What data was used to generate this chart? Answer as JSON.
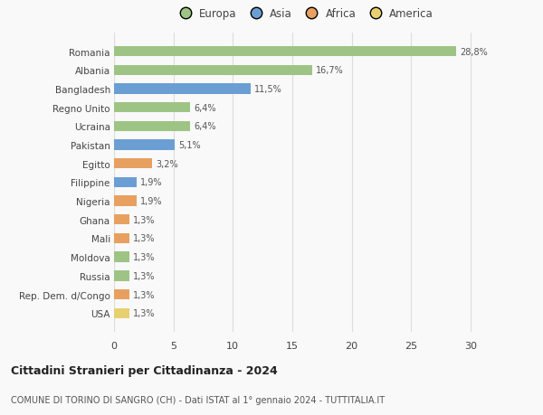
{
  "categories": [
    "USA",
    "Rep. Dem. d/Congo",
    "Russia",
    "Moldova",
    "Mali",
    "Ghana",
    "Nigeria",
    "Filippine",
    "Egitto",
    "Pakistan",
    "Ucraina",
    "Regno Unito",
    "Bangladesh",
    "Albania",
    "Romania"
  ],
  "values": [
    1.3,
    1.3,
    1.3,
    1.3,
    1.3,
    1.3,
    1.9,
    1.9,
    3.2,
    5.1,
    6.4,
    6.4,
    11.5,
    16.7,
    28.8
  ],
  "labels": [
    "1,3%",
    "1,3%",
    "1,3%",
    "1,3%",
    "1,3%",
    "1,3%",
    "1,9%",
    "1,9%",
    "3,2%",
    "5,1%",
    "6,4%",
    "6,4%",
    "11,5%",
    "16,7%",
    "28,8%"
  ],
  "colors": [
    "#e8d070",
    "#e8a060",
    "#9dc484",
    "#9dc484",
    "#e8a060",
    "#e8a060",
    "#e8a060",
    "#6b9fd4",
    "#e8a060",
    "#6b9fd4",
    "#9dc484",
    "#9dc484",
    "#6b9fd4",
    "#9dc484",
    "#9dc484"
  ],
  "continent_colors": {
    "Europa": "#9dc484",
    "Asia": "#6b9fd4",
    "Africa": "#e8a060",
    "America": "#e8d070"
  },
  "title1": "Cittadini Stranieri per Cittadinanza - 2024",
  "title2": "COMUNE DI TORINO DI SANGRO (CH) - Dati ISTAT al 1° gennaio 2024 - TUTTITALIA.IT",
  "xlim": [
    0,
    32
  ],
  "xticks": [
    0,
    5,
    10,
    15,
    20,
    25,
    30
  ],
  "background_color": "#f9f9f9",
  "grid_color": "#dddddd"
}
